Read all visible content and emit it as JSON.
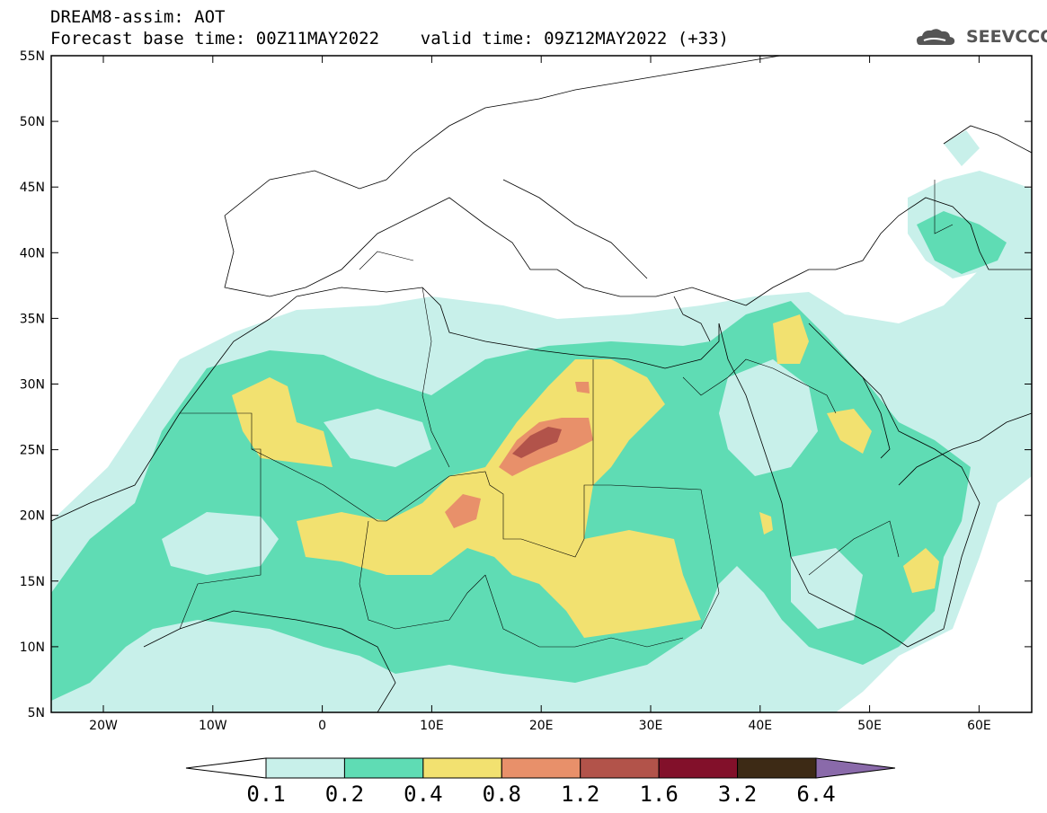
{
  "header": {
    "title_line1": "DREAM8-assim: AOT",
    "title_line2": "Forecast base time: 00Z11MAY2022    valid time: 09Z12MAY2022 (+33)"
  },
  "logo": {
    "text": "SEEVCCC",
    "icon": "cloud-icon"
  },
  "axes": {
    "lat_labels": [
      "55N",
      "50N",
      "45N",
      "40N",
      "35N",
      "30N",
      "25N",
      "20N",
      "15N",
      "10N",
      "5N"
    ],
    "lon_labels": [
      "20W",
      "10W",
      "0",
      "10E",
      "20E",
      "30E",
      "40E",
      "50E",
      "60E"
    ]
  },
  "colorbar": {
    "labels": [
      "0.1",
      "0.2",
      "0.4",
      "0.8",
      "1.2",
      "1.6",
      "3.2",
      "6.4"
    ],
    "colors": [
      "#c8f0ea",
      "#5fdcb4",
      "#f2e170",
      "#e8906a",
      "#b2534a",
      "#82102a",
      "#3d2a15",
      "#8a6aaa"
    ]
  },
  "palette": {
    "c1": "#c8f0ea",
    "c2": "#5fdcb4",
    "c3": "#f2e170",
    "c4": "#e8906a",
    "c5": "#b2534a"
  }
}
